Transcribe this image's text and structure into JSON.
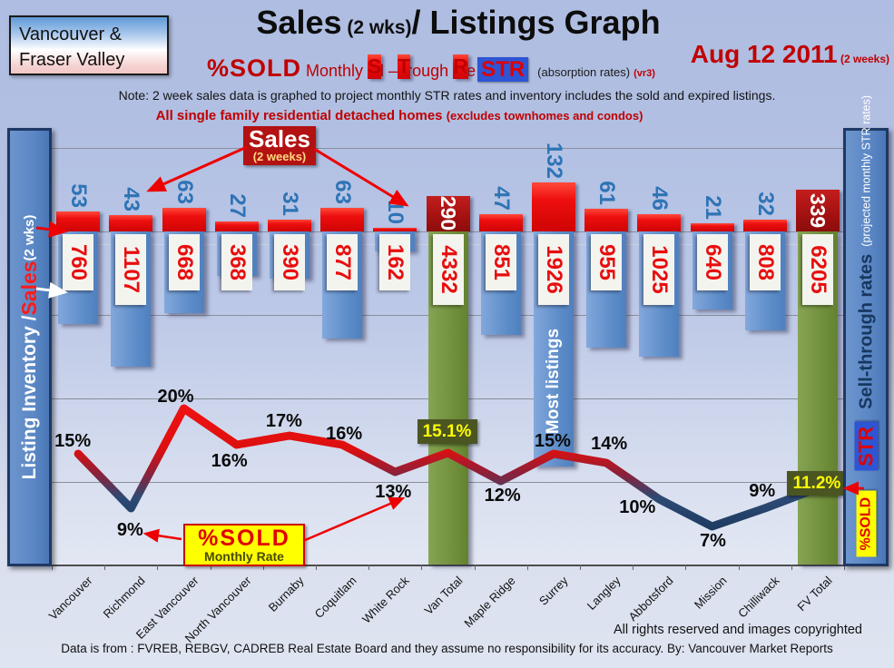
{
  "header": {
    "region_line1": "Vancouver &",
    "region_line2": "Fraser Valley",
    "title_sales": "Sales",
    "title_wks": " (2 wks)",
    "title_rest": "/ Listings Graph",
    "date": "Aug 12 2011",
    "date_note": " (2 weeks)",
    "sold_label": "%SOLD",
    "rate_m": " Monthly ",
    "rate_c1": "S",
    "rate_p1": "ell –",
    "rate_c2": "T",
    "rate_p2": "hrough ",
    "rate_c3": "R",
    "rate_p3": "ate",
    "str_badge": "STR",
    "absorption": "(absorption rates)",
    "version": "(vr3)",
    "note": "Note: 2 week sales data is graphed to project monthly STR rates and inventory includes the sold and expired listings.",
    "subtitle": "All single family residential detached homes ",
    "subtitle_paren": "(excludes townhomes and condos)"
  },
  "left_axis": {
    "part1": "Listing Inventory / ",
    "part2": "Sales",
    "part3": " (2  wks)"
  },
  "right_axis": {
    "sold": "%SOLD",
    "str": "STR",
    "title": "Sell-through rates",
    "paren": "(projected monthly STR rates)"
  },
  "callouts": {
    "sales_title": "Sales",
    "sales_sub": "(2 weeks)",
    "sold_title": "%SOLD",
    "sold_sub": "Monthly Rate",
    "most_listings": "Most listings"
  },
  "chart_data": {
    "type": "combo: hanging bar columns (sales cap + listing inventory) with %SOLD line",
    "categories": [
      "Vancouver",
      "Richmond",
      "East Vancouver",
      "North Vancouver",
      "Burnaby",
      "Coquitlam",
      "White Rock",
      "Van Total",
      "Maple Ridge",
      "Surrey",
      "Langley",
      "Abbotsford",
      "Mission",
      "Chilliwack",
      "FV Total"
    ],
    "series": [
      {
        "name": "Sales (2 weeks)",
        "values": [
          53,
          43,
          63,
          27,
          31,
          63,
          10,
          290,
          47,
          132,
          61,
          46,
          21,
          32,
          339
        ]
      },
      {
        "name": "Listing Inventory (includes sold and expired)",
        "values": [
          760,
          1107,
          668,
          368,
          390,
          877,
          162,
          4332,
          851,
          1926,
          955,
          1025,
          640,
          808,
          6205
        ]
      },
      {
        "name": "%SOLD Monthly Sell-Through Rate",
        "values": [
          15,
          9,
          20,
          16,
          17,
          16,
          13,
          15.1,
          12,
          15,
          14,
          10,
          7,
          9,
          11.2
        ]
      }
    ],
    "pct_labels": [
      "15%",
      "9%",
      "20%",
      "16%",
      "17%",
      "16%",
      "13%",
      "15.1%",
      "12%",
      "15%",
      "14%",
      "10%",
      "7%",
      "9%",
      "11.2%"
    ],
    "total_columns": [
      "Van Total",
      "FV Total"
    ],
    "annotations": {
      "most_listings_on": "Surrey"
    },
    "grid": true,
    "legend_position": "none"
  },
  "footer": {
    "rights": "All rights reserved and  images copyrighted",
    "source": "Data is from : FVREB, REBGV, CADREB Real Estate Board and they assume no responsibility for its accuracy. By: Vancouver Market Reports"
  },
  "colors": {
    "sales_red": "#ee0f0f",
    "total_dark_red": "#a31111",
    "inventory_blue": "#6190cb",
    "total_green": "#73923f",
    "inventory_number_red": "#e80e0e",
    "sales_number_blue": "#2e74b5",
    "line_high_red": "#e60000",
    "line_low_navy": "#1d3a5e",
    "highlight_yellow": "#ffff00",
    "highlight_olive": "#4b5522",
    "sidebar_blue": "#5b87c5",
    "background": "#b2c0e3"
  }
}
